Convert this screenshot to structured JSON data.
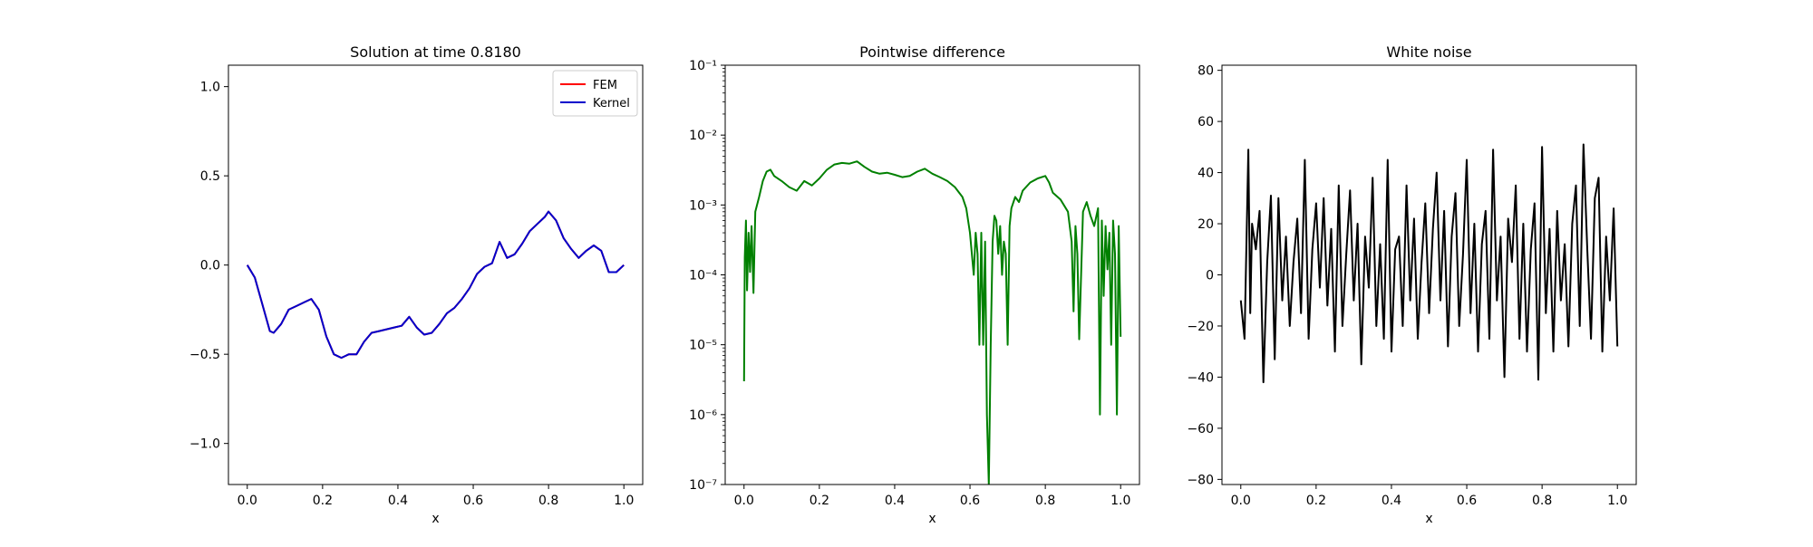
{
  "chart_data": [
    {
      "type": "line",
      "title": "Solution at time 0.8180",
      "xlabel": "x",
      "ylabel": "",
      "xlim": [
        -0.05,
        1.05
      ],
      "ylim": [
        -1.23,
        1.12
      ],
      "x_ticks": [
        0.0,
        0.2,
        0.4,
        0.6,
        0.8,
        1.0
      ],
      "x_tick_labels": [
        "0.0",
        "0.2",
        "0.4",
        "0.6",
        "0.8",
        "1.0"
      ],
      "y_ticks": [
        1.0,
        0.5,
        0.0,
        -0.5,
        -1.0
      ],
      "y_tick_labels": [
        "1.0",
        "0.5",
        "0.0",
        "−0.5",
        "−1.0"
      ],
      "legend": {
        "position": "upper-right",
        "entries": [
          "FEM",
          "Kernel"
        ]
      },
      "x": [
        0.0,
        0.02,
        0.04,
        0.06,
        0.07,
        0.09,
        0.11,
        0.13,
        0.15,
        0.17,
        0.19,
        0.21,
        0.23,
        0.25,
        0.27,
        0.29,
        0.31,
        0.33,
        0.35,
        0.37,
        0.39,
        0.41,
        0.43,
        0.45,
        0.47,
        0.49,
        0.51,
        0.53,
        0.55,
        0.57,
        0.59,
        0.61,
        0.63,
        0.65,
        0.67,
        0.69,
        0.71,
        0.73,
        0.75,
        0.77,
        0.79,
        0.8,
        0.82,
        0.84,
        0.86,
        0.88,
        0.9,
        0.92,
        0.94,
        0.96,
        0.98,
        1.0
      ],
      "series": [
        {
          "name": "FEM",
          "color": "#ff0000",
          "values": [
            0.0,
            -0.07,
            -0.22,
            -0.37,
            -0.38,
            -0.33,
            -0.25,
            -0.23,
            -0.21,
            -0.19,
            -0.25,
            -0.4,
            -0.5,
            -0.52,
            -0.5,
            -0.5,
            -0.43,
            -0.38,
            -0.37,
            -0.36,
            -0.35,
            -0.34,
            -0.29,
            -0.35,
            -0.39,
            -0.38,
            -0.33,
            -0.27,
            -0.24,
            -0.19,
            -0.13,
            -0.05,
            -0.01,
            0.01,
            0.13,
            0.04,
            0.06,
            0.12,
            0.19,
            0.23,
            0.27,
            0.3,
            0.25,
            0.15,
            0.09,
            0.04,
            0.08,
            0.11,
            0.08,
            -0.04,
            -0.04,
            0.0
          ]
        },
        {
          "name": "Kernel",
          "color": "#0000cc",
          "values": [
            0.0,
            -0.07,
            -0.22,
            -0.37,
            -0.38,
            -0.33,
            -0.25,
            -0.23,
            -0.21,
            -0.19,
            -0.25,
            -0.4,
            -0.5,
            -0.52,
            -0.5,
            -0.5,
            -0.43,
            -0.38,
            -0.37,
            -0.36,
            -0.35,
            -0.34,
            -0.29,
            -0.35,
            -0.39,
            -0.38,
            -0.33,
            -0.27,
            -0.24,
            -0.19,
            -0.13,
            -0.05,
            -0.01,
            0.01,
            0.13,
            0.04,
            0.06,
            0.12,
            0.19,
            0.23,
            0.27,
            0.3,
            0.25,
            0.15,
            0.09,
            0.04,
            0.08,
            0.11,
            0.08,
            -0.04,
            -0.04,
            0.0
          ]
        }
      ]
    },
    {
      "type": "line",
      "title": "Pointwise difference",
      "xlabel": "x",
      "ylabel": "",
      "yscale": "log",
      "xlim": [
        -0.05,
        1.05
      ],
      "ylim": [
        1e-07,
        0.1
      ],
      "x_ticks": [
        0.0,
        0.2,
        0.4,
        0.6,
        0.8,
        1.0
      ],
      "x_tick_labels": [
        "0.0",
        "0.2",
        "0.4",
        "0.6",
        "0.8",
        "1.0"
      ],
      "y_ticks": [
        1e-07,
        1e-06,
        1e-05,
        0.0001,
        0.001,
        0.01,
        0.1
      ],
      "y_tick_labels": [
        "10⁻⁷",
        "10⁻⁶",
        "10⁻⁵",
        "10⁻⁴",
        "10⁻³",
        "10⁻²",
        "10⁻¹"
      ],
      "x": [
        0.0,
        0.002,
        0.005,
        0.008,
        0.012,
        0.016,
        0.02,
        0.025,
        0.03,
        0.04,
        0.05,
        0.06,
        0.07,
        0.08,
        0.1,
        0.12,
        0.14,
        0.16,
        0.18,
        0.2,
        0.22,
        0.24,
        0.26,
        0.28,
        0.3,
        0.32,
        0.34,
        0.36,
        0.38,
        0.4,
        0.42,
        0.44,
        0.46,
        0.48,
        0.5,
        0.52,
        0.54,
        0.56,
        0.58,
        0.59,
        0.6,
        0.605,
        0.61,
        0.615,
        0.62,
        0.625,
        0.63,
        0.635,
        0.64,
        0.645,
        0.65,
        0.655,
        0.66,
        0.665,
        0.67,
        0.675,
        0.68,
        0.685,
        0.69,
        0.695,
        0.7,
        0.705,
        0.71,
        0.72,
        0.73,
        0.74,
        0.76,
        0.78,
        0.8,
        0.81,
        0.82,
        0.84,
        0.86,
        0.87,
        0.875,
        0.88,
        0.885,
        0.89,
        0.9,
        0.91,
        0.92,
        0.93,
        0.94,
        0.945,
        0.95,
        0.955,
        0.96,
        0.965,
        0.97,
        0.975,
        0.98,
        0.985,
        0.99,
        0.995,
        1.0
      ],
      "series": [
        {
          "name": "",
          "color": "#008000",
          "values": [
            3e-06,
            0.00018,
            0.0006,
            6e-05,
            0.0004,
            0.00011,
            0.0005,
            5.5e-05,
            0.0008,
            0.0013,
            0.0022,
            0.003,
            0.0032,
            0.0026,
            0.0022,
            0.0018,
            0.0016,
            0.0022,
            0.0019,
            0.0024,
            0.0032,
            0.0038,
            0.004,
            0.0039,
            0.0042,
            0.0035,
            0.003,
            0.0028,
            0.0029,
            0.0027,
            0.0025,
            0.0026,
            0.003,
            0.0033,
            0.0028,
            0.0025,
            0.0022,
            0.0018,
            0.0013,
            0.0009,
            0.0004,
            0.0002,
            0.0001,
            0.0004,
            0.0002,
            1e-05,
            0.0004,
            1e-05,
            0.0003,
            1e-06,
            1e-07,
            1e-05,
            0.0003,
            0.0007,
            0.0006,
            0.0002,
            0.0005,
            0.0001,
            0.0003,
            0.0002,
            1e-05,
            0.0005,
            0.0009,
            0.0013,
            0.0011,
            0.0016,
            0.0021,
            0.0024,
            0.0026,
            0.0021,
            0.0015,
            0.0012,
            0.0008,
            0.0003,
            3e-05,
            0.0005,
            0.0002,
            1.2e-05,
            0.0008,
            0.0011,
            0.0007,
            0.0005,
            0.0009,
            1e-06,
            0.0006,
            5e-05,
            0.0005,
            0.00012,
            0.0004,
            1e-05,
            0.0006,
            0.0002,
            1e-06,
            0.0005,
            1.3e-05
          ]
        }
      ]
    },
    {
      "type": "line",
      "title": "White noise",
      "xlabel": "x",
      "ylabel": "",
      "xlim": [
        -0.05,
        1.05
      ],
      "ylim": [
        -82,
        82
      ],
      "x_ticks": [
        0.0,
        0.2,
        0.4,
        0.6,
        0.8,
        1.0
      ],
      "x_tick_labels": [
        "0.0",
        "0.2",
        "0.4",
        "0.6",
        "0.8",
        "1.0"
      ],
      "y_ticks": [
        80,
        60,
        40,
        20,
        0,
        -20,
        -40,
        -60,
        -80
      ],
      "y_tick_labels": [
        "80",
        "60",
        "40",
        "20",
        "0",
        "−20",
        "−40",
        "−60",
        "−80"
      ],
      "x": [
        0.0,
        0.01,
        0.02,
        0.025,
        0.03,
        0.04,
        0.05,
        0.06,
        0.07,
        0.08,
        0.09,
        0.1,
        0.11,
        0.12,
        0.13,
        0.14,
        0.15,
        0.16,
        0.17,
        0.18,
        0.19,
        0.2,
        0.21,
        0.22,
        0.23,
        0.24,
        0.25,
        0.26,
        0.27,
        0.28,
        0.29,
        0.3,
        0.31,
        0.32,
        0.33,
        0.34,
        0.35,
        0.36,
        0.37,
        0.38,
        0.39,
        0.4,
        0.41,
        0.42,
        0.43,
        0.44,
        0.45,
        0.46,
        0.47,
        0.48,
        0.49,
        0.5,
        0.51,
        0.52,
        0.53,
        0.54,
        0.55,
        0.56,
        0.57,
        0.58,
        0.59,
        0.6,
        0.61,
        0.62,
        0.63,
        0.64,
        0.65,
        0.66,
        0.67,
        0.68,
        0.69,
        0.7,
        0.71,
        0.72,
        0.73,
        0.74,
        0.75,
        0.76,
        0.77,
        0.78,
        0.79,
        0.8,
        0.81,
        0.82,
        0.83,
        0.84,
        0.85,
        0.86,
        0.87,
        0.88,
        0.89,
        0.9,
        0.91,
        0.92,
        0.93,
        0.94,
        0.95,
        0.96,
        0.97,
        0.98,
        0.99,
        1.0
      ],
      "series": [
        {
          "name": "",
          "color": "#000000",
          "values": [
            -10,
            -25,
            49,
            -15,
            20,
            10,
            25,
            -42,
            5,
            31,
            -33,
            30,
            -10,
            15,
            -20,
            5,
            22,
            -15,
            45,
            -25,
            10,
            28,
            -5,
            30,
            -12,
            18,
            -30,
            35,
            -20,
            8,
            33,
            -10,
            20,
            -35,
            15,
            -5,
            38,
            -20,
            12,
            -25,
            45,
            -30,
            10,
            15,
            -20,
            35,
            -10,
            22,
            -25,
            5,
            28,
            -15,
            18,
            40,
            -10,
            25,
            -28,
            15,
            32,
            -20,
            8,
            45,
            -15,
            20,
            -30,
            12,
            25,
            -25,
            49,
            -10,
            15,
            -40,
            22,
            5,
            35,
            -25,
            20,
            -30,
            10,
            28,
            -41,
            50,
            -15,
            18,
            -30,
            25,
            -10,
            12,
            -28,
            20,
            35,
            -20,
            51,
            10,
            -25,
            30,
            38,
            -30,
            15,
            -10,
            26,
            -28
          ]
        }
      ]
    }
  ]
}
